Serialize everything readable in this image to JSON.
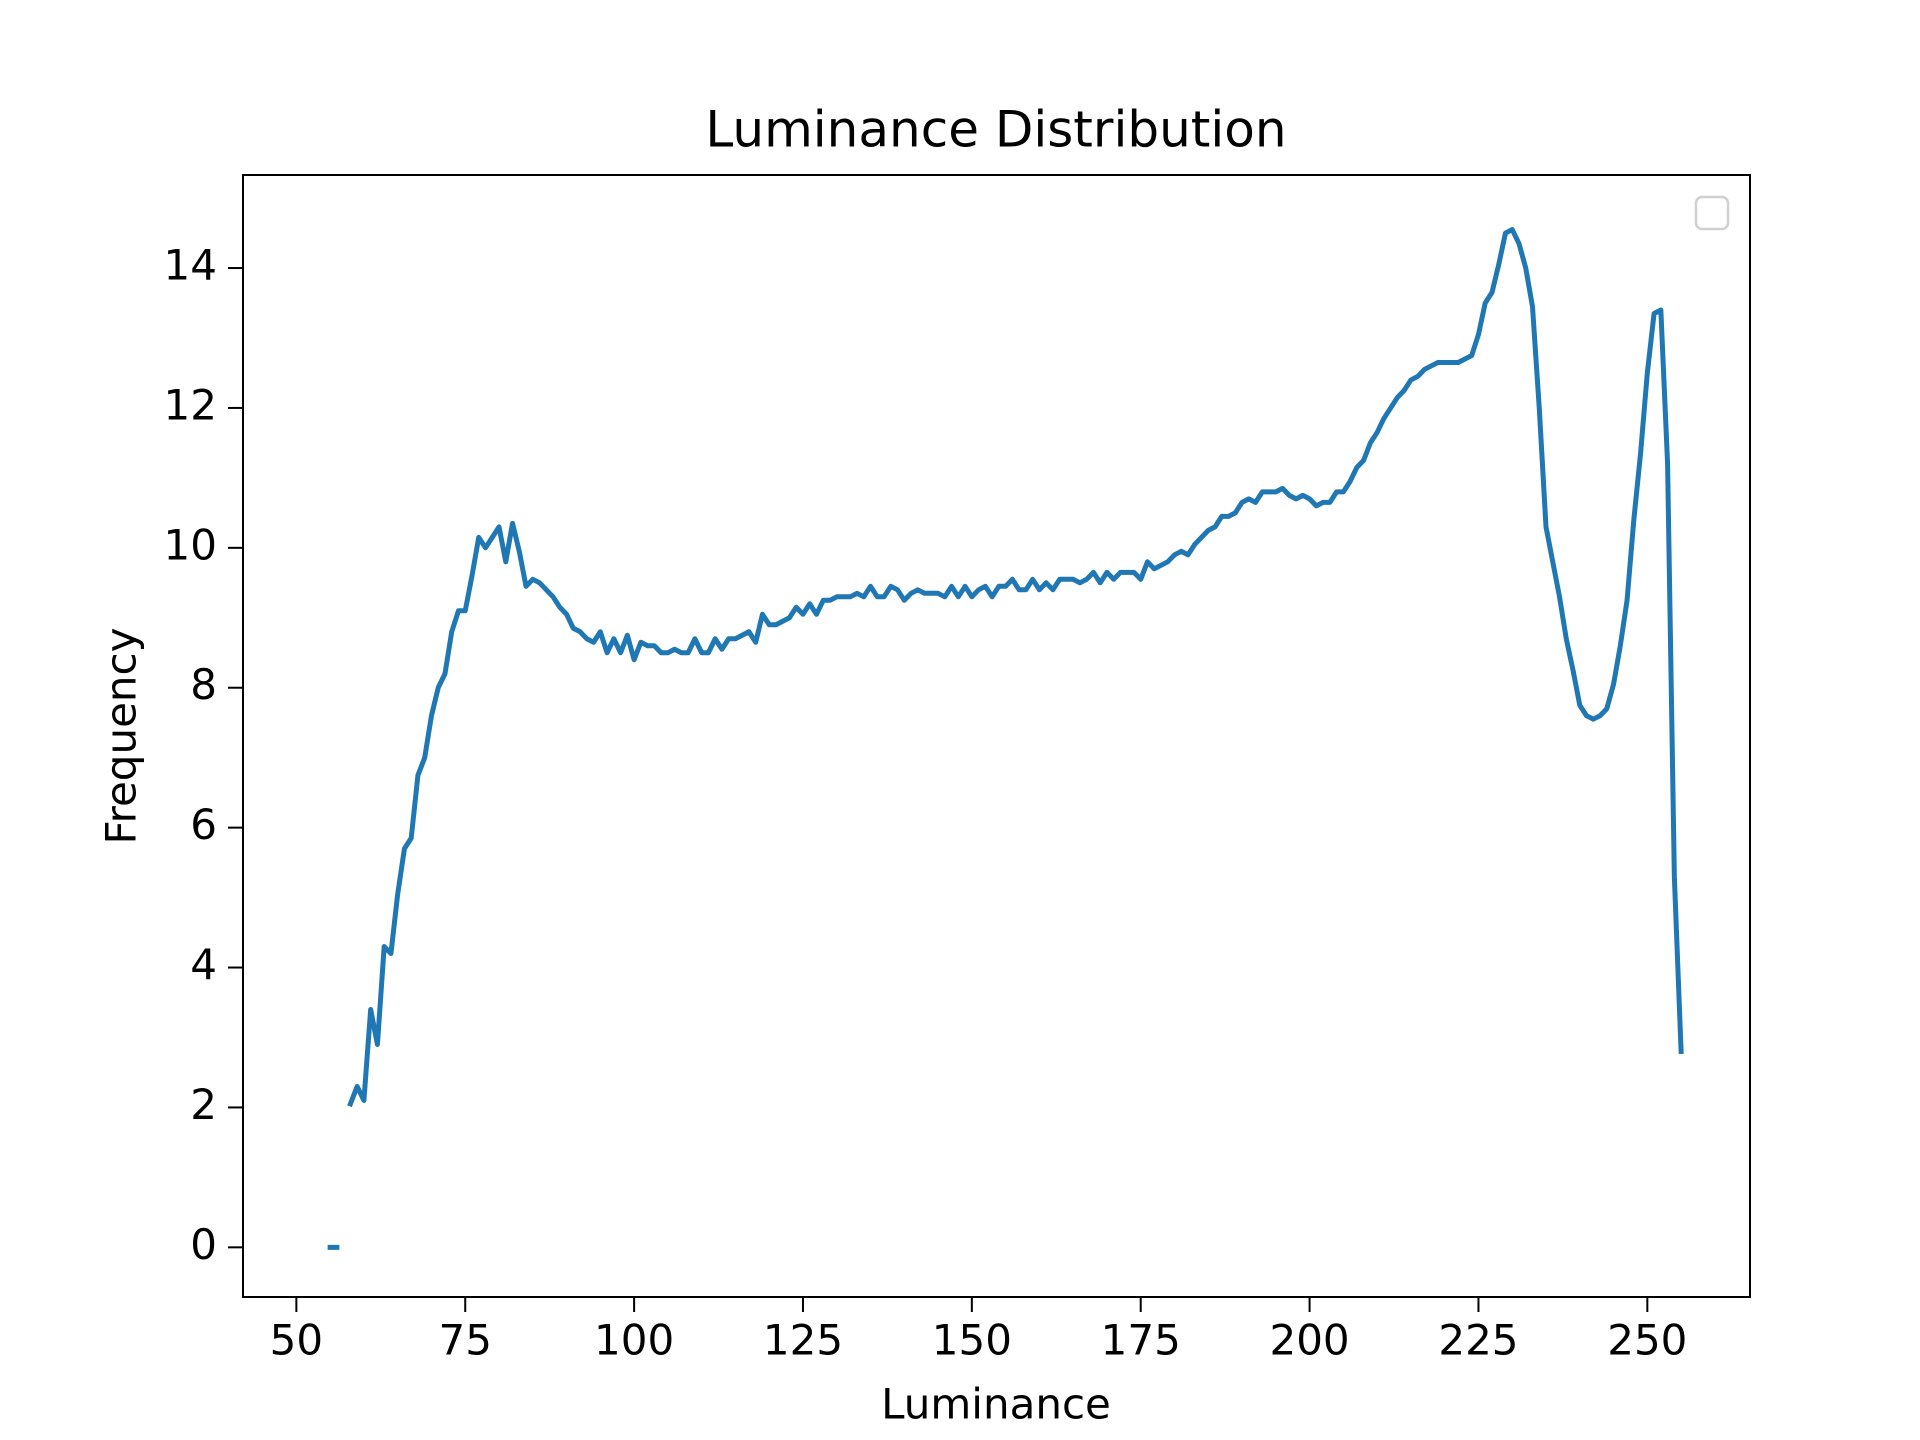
{
  "chart_data": {
    "type": "line",
    "title": "Luminance Distribution",
    "x_label": "Luminance",
    "y_label": "Frequency",
    "color": "#1f77b4",
    "x": [
      55,
      56,
      57,
      58,
      59,
      60,
      61,
      62,
      63,
      64,
      65,
      66,
      67,
      68,
      69,
      70,
      71,
      72,
      73,
      74,
      75,
      76,
      77,
      78,
      79,
      80,
      81,
      82,
      83,
      84,
      85,
      86,
      87,
      88,
      89,
      90,
      91,
      92,
      93,
      94,
      95,
      96,
      97,
      98,
      99,
      100,
      101,
      102,
      103,
      104,
      105,
      106,
      107,
      108,
      109,
      110,
      111,
      112,
      113,
      114,
      115,
      116,
      117,
      118,
      119,
      120,
      121,
      122,
      123,
      124,
      125,
      126,
      127,
      128,
      129,
      130,
      131,
      132,
      133,
      134,
      135,
      136,
      137,
      138,
      139,
      140,
      141,
      142,
      143,
      144,
      145,
      146,
      147,
      148,
      149,
      150,
      151,
      152,
      153,
      154,
      155,
      156,
      157,
      158,
      159,
      160,
      161,
      162,
      163,
      164,
      165,
      166,
      167,
      168,
      169,
      170,
      171,
      172,
      173,
      174,
      175,
      176,
      177,
      178,
      179,
      180,
      181,
      182,
      183,
      184,
      185,
      186,
      187,
      188,
      189,
      190,
      191,
      192,
      193,
      194,
      195,
      196,
      197,
      198,
      199,
      200,
      201,
      202,
      203,
      204,
      205,
      206,
      207,
      208,
      209,
      210,
      211,
      212,
      213,
      214,
      215,
      216,
      217,
      218,
      219,
      220,
      221,
      222,
      223,
      224,
      225,
      226,
      227,
      228,
      229,
      230,
      231,
      232,
      233,
      234,
      235,
      236,
      237,
      238,
      239,
      240,
      241,
      242,
      243,
      244,
      245,
      246,
      247,
      248,
      249,
      250,
      251,
      252,
      253,
      254,
      255
    ],
    "values": [
      0,
      0,
      null,
      2.05,
      2.3,
      2.1,
      3.4,
      2.9,
      4.3,
      4.2,
      5.05,
      5.7,
      5.85,
      6.75,
      7.0,
      7.6,
      8.0,
      8.2,
      8.8,
      9.1,
      9.1,
      9.6,
      10.15,
      10.0,
      10.15,
      10.3,
      9.8,
      10.35,
      9.95,
      9.45,
      9.55,
      9.5,
      9.4,
      9.3,
      9.15,
      9.05,
      8.85,
      8.8,
      8.7,
      8.65,
      8.8,
      8.5,
      8.7,
      8.5,
      8.75,
      8.4,
      8.65,
      8.6,
      8.6,
      8.5,
      8.5,
      8.55,
      8.5,
      8.5,
      8.7,
      8.5,
      8.5,
      8.7,
      8.55,
      8.7,
      8.7,
      8.75,
      8.8,
      8.65,
      9.05,
      8.9,
      8.9,
      8.95,
      9.0,
      9.15,
      9.05,
      9.2,
      9.05,
      9.25,
      9.25,
      9.3,
      9.3,
      9.3,
      9.35,
      9.3,
      9.45,
      9.3,
      9.3,
      9.45,
      9.4,
      9.25,
      9.35,
      9.4,
      9.35,
      9.35,
      9.35,
      9.3,
      9.45,
      9.3,
      9.45,
      9.3,
      9.4,
      9.45,
      9.3,
      9.45,
      9.45,
      9.55,
      9.4,
      9.4,
      9.55,
      9.4,
      9.5,
      9.4,
      9.55,
      9.55,
      9.55,
      9.5,
      9.55,
      9.65,
      9.5,
      9.65,
      9.55,
      9.65,
      9.65,
      9.65,
      9.55,
      9.8,
      9.7,
      9.75,
      9.8,
      9.9,
      9.95,
      9.9,
      10.05,
      10.15,
      10.25,
      10.3,
      10.45,
      10.45,
      10.5,
      10.65,
      10.7,
      10.65,
      10.8,
      10.8,
      10.8,
      10.85,
      10.75,
      10.7,
      10.75,
      10.7,
      10.6,
      10.65,
      10.65,
      10.8,
      10.8,
      10.95,
      11.15,
      11.25,
      11.5,
      11.65,
      11.85,
      12.0,
      12.15,
      12.25,
      12.4,
      12.45,
      12.55,
      12.6,
      12.65,
      12.65,
      12.65,
      12.65,
      12.7,
      12.75,
      13.05,
      13.5,
      13.65,
      14.05,
      14.5,
      14.55,
      14.35,
      14.0,
      13.45,
      12.0,
      10.3,
      9.8,
      9.3,
      8.7,
      8.25,
      7.75,
      7.6,
      7.55,
      7.6,
      7.7,
      8.05,
      8.6,
      9.25,
      10.4,
      11.35,
      12.5,
      13.35,
      13.4,
      11.2,
      5.3,
      2.8
    ],
    "xlim": [
      42.1,
      265.2
    ],
    "xticks": [
      50,
      75,
      100,
      125,
      150,
      175,
      200,
      225,
      250
    ],
    "ylim": [
      -0.71,
      15.33
    ],
    "yticks": [
      0,
      2,
      4,
      6,
      8,
      10,
      12,
      14
    ],
    "legend": "upper right"
  }
}
